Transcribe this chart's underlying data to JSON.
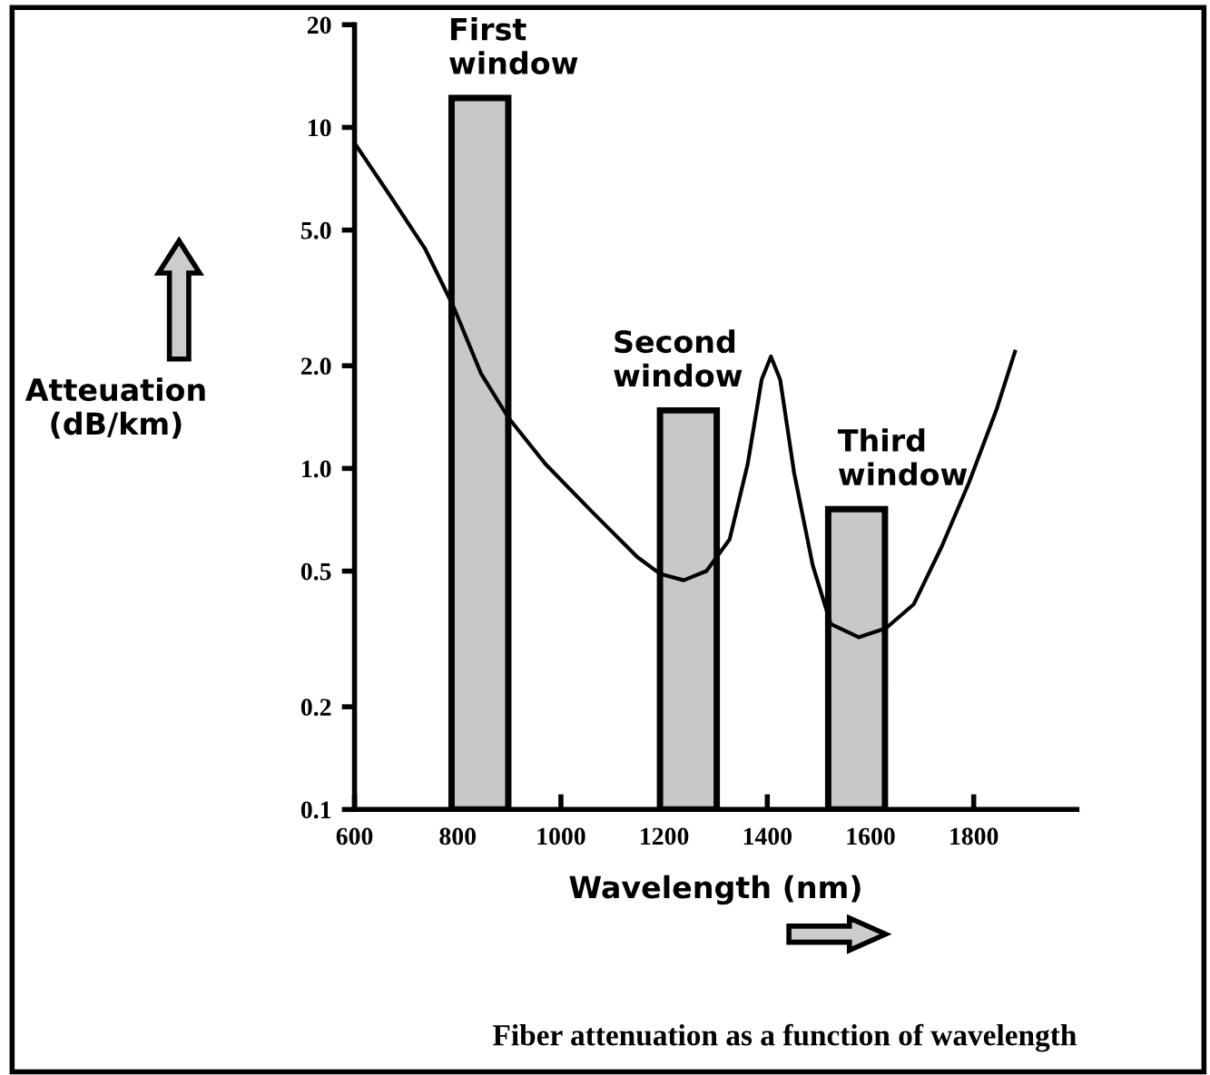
{
  "chart_data": {
    "type": "line",
    "title": "Fiber attenuation as a function of wavelength",
    "xlabel": "Wavelength (nm)",
    "ylabel": "Atteuation\n(dB/km)",
    "log": "y",
    "xlim": [
      600,
      2000
    ],
    "ylim": [
      0.1,
      20
    ],
    "xticks": [
      600,
      800,
      1000,
      1200,
      1400,
      1600,
      1800
    ],
    "yticks": [
      0.1,
      0.2,
      0.5,
      {
        "value": 1,
        "label": "1.0"
      },
      {
        "value": 2,
        "label": "2.0"
      },
      {
        "value": 5,
        "label": "5.0"
      },
      10,
      20
    ],
    "grid": false,
    "legend": false,
    "series": [
      {
        "type": "bar",
        "color": "#c8c8c8",
        "x": [
          843,
          1247,
          1573
        ],
        "values": [
          12.2,
          1.48,
          0.76
        ]
      },
      {
        "color": "#000000",
        "x": [
          600,
          666,
          737,
          791,
          845,
          898,
          970,
          1059,
          1148,
          1193,
          1238,
          1282,
          1327,
          1362,
          1389,
          1407,
          1425,
          1452,
          1488,
          1523,
          1577,
          1630,
          1684,
          1738,
          1791,
          1845,
          1880
        ],
        "values": [
          9.0,
          6.4,
          4.4,
          3.0,
          1.9,
          1.41,
          1.03,
          0.75,
          0.55,
          0.49,
          0.47,
          0.5,
          0.62,
          1.03,
          1.82,
          2.13,
          1.82,
          0.97,
          0.52,
          0.35,
          0.32,
          0.34,
          0.4,
          0.59,
          0.91,
          1.5,
          2.2
        ]
      }
    ],
    "annotations": [
      {
        "text": "First\nwindow",
        "x": 843,
        "y": 12.2
      },
      {
        "text": "Second\nwindow",
        "x": 1247,
        "y": 1.48
      },
      {
        "text": "Third\nwindow",
        "x": 1573,
        "y": 0.76
      }
    ]
  }
}
